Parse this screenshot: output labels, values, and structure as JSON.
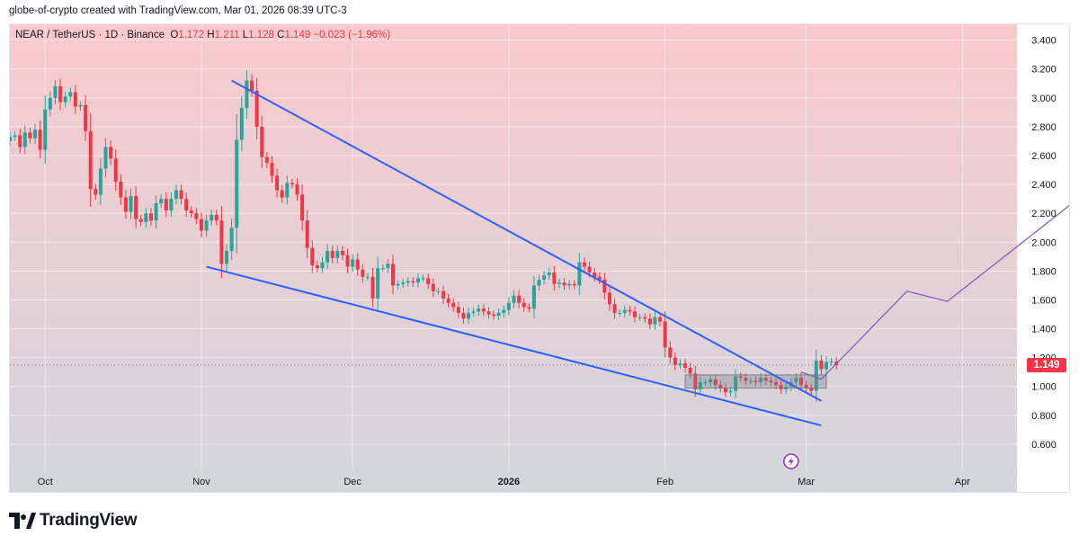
{
  "header": {
    "credit": "globe-of-crypto created with TradingView.com, Mar 01, 2026 08:39 UTC-3"
  },
  "legend": {
    "symbol": "NEAR / TetherUS · 1D · Binance",
    "open_label": "O",
    "open": "1.172",
    "high_label": "H",
    "high": "1.211",
    "low_label": "L",
    "low": "1.128",
    "close_label": "C",
    "close": "1.149",
    "change": "−0.023 (−1.96%)"
  },
  "footer": {
    "brand": "TradingView"
  },
  "colors": {
    "up": "#26a69a",
    "down": "#f23645",
    "trendline": "#2962ff",
    "projection": "#7e57c2",
    "bg_top": "#f9c9cc",
    "bg_bottom": "#d3d6dd"
  },
  "chart_data": {
    "type": "candlestick",
    "ylim": [
      0.45,
      3.51
    ],
    "y_ticks": [
      "3.400",
      "3.200",
      "3.000",
      "2.800",
      "2.600",
      "2.400",
      "2.200",
      "2.000",
      "1.800",
      "1.600",
      "1.400",
      "1.200",
      "1.000",
      "0.800",
      "0.600"
    ],
    "x_ticks": [
      "Oct",
      "Nov",
      "Dec",
      "2026",
      "Feb",
      "Mar",
      "Apr"
    ],
    "x_tick_dates": [
      "2025-10-01",
      "2025-11-01",
      "2025-12-01",
      "2026-01-01",
      "2026-02-01",
      "2026-03-01",
      "2026-04-01"
    ],
    "start_date": "2025-09-24",
    "last_price": "1.149",
    "last_close": 1.149,
    "closes": [
      2.73,
      2.74,
      2.66,
      2.76,
      2.72,
      2.78,
      2.64,
      2.92,
      3.0,
      3.08,
      2.97,
      3.01,
      3.04,
      2.94,
      2.95,
      2.77,
      2.37,
      2.33,
      2.51,
      2.66,
      2.58,
      2.42,
      2.31,
      2.21,
      2.32,
      2.16,
      2.14,
      2.2,
      2.15,
      2.27,
      2.3,
      2.22,
      2.3,
      2.36,
      2.3,
      2.22,
      2.2,
      2.16,
      2.08,
      2.15,
      2.19,
      2.15,
      1.85,
      1.94,
      2.1,
      2.71,
      2.93,
      3.12,
      3.05,
      2.8,
      2.59,
      2.55,
      2.46,
      2.36,
      2.31,
      2.41,
      2.4,
      2.33,
      2.15,
      1.96,
      1.84,
      1.82,
      1.86,
      1.94,
      1.89,
      1.94,
      1.91,
      1.83,
      1.88,
      1.81,
      1.76,
      1.76,
      1.61,
      1.82,
      1.82,
      1.85,
      1.7,
      1.71,
      1.72,
      1.73,
      1.72,
      1.75,
      1.75,
      1.71,
      1.66,
      1.66,
      1.61,
      1.58,
      1.55,
      1.51,
      1.47,
      1.51,
      1.52,
      1.54,
      1.52,
      1.5,
      1.49,
      1.51,
      1.53,
      1.58,
      1.63,
      1.58,
      1.55,
      1.54,
      1.7,
      1.74,
      1.77,
      1.79,
      1.71,
      1.72,
      1.7,
      1.71,
      1.7,
      1.86,
      1.83,
      1.79,
      1.76,
      1.74,
      1.65,
      1.57,
      1.51,
      1.51,
      1.53,
      1.52,
      1.48,
      1.48,
      1.47,
      1.43,
      1.48,
      1.45,
      1.27,
      1.2,
      1.15,
      1.16,
      1.13,
      1.09,
      0.98,
      1.03,
      1.03,
      1.05,
      1.01,
      0.99,
      0.96,
      0.97,
      1.07,
      1.06,
      1.04,
      1.04,
      1.03,
      1.06,
      1.04,
      1.03,
      1.01,
      0.98,
      1.0,
      1.03,
      1.06,
      1.01,
      0.99,
      0.97,
      1.18,
      1.12,
      1.17,
      1.172,
      1.149
    ],
    "trendlines": [
      {
        "from": [
          "2025-11-07",
          3.12
        ],
        "to": [
          "2026-03-04",
          0.9
        ]
      },
      {
        "from": [
          "2025-11-02",
          1.83
        ],
        "to": [
          "2026-03-04",
          0.73
        ]
      }
    ],
    "range_box": {
      "from": "2026-02-05",
      "to": "2026-03-05",
      "top": 1.08,
      "bottom": 0.99
    },
    "projection": [
      [
        "2026-02-28",
        1.1
      ],
      [
        "2026-03-04",
        1.05
      ],
      [
        "2026-03-21",
        1.66
      ],
      [
        "2026-03-29",
        1.59
      ],
      [
        "2026-04-29",
        2.44
      ]
    ]
  }
}
